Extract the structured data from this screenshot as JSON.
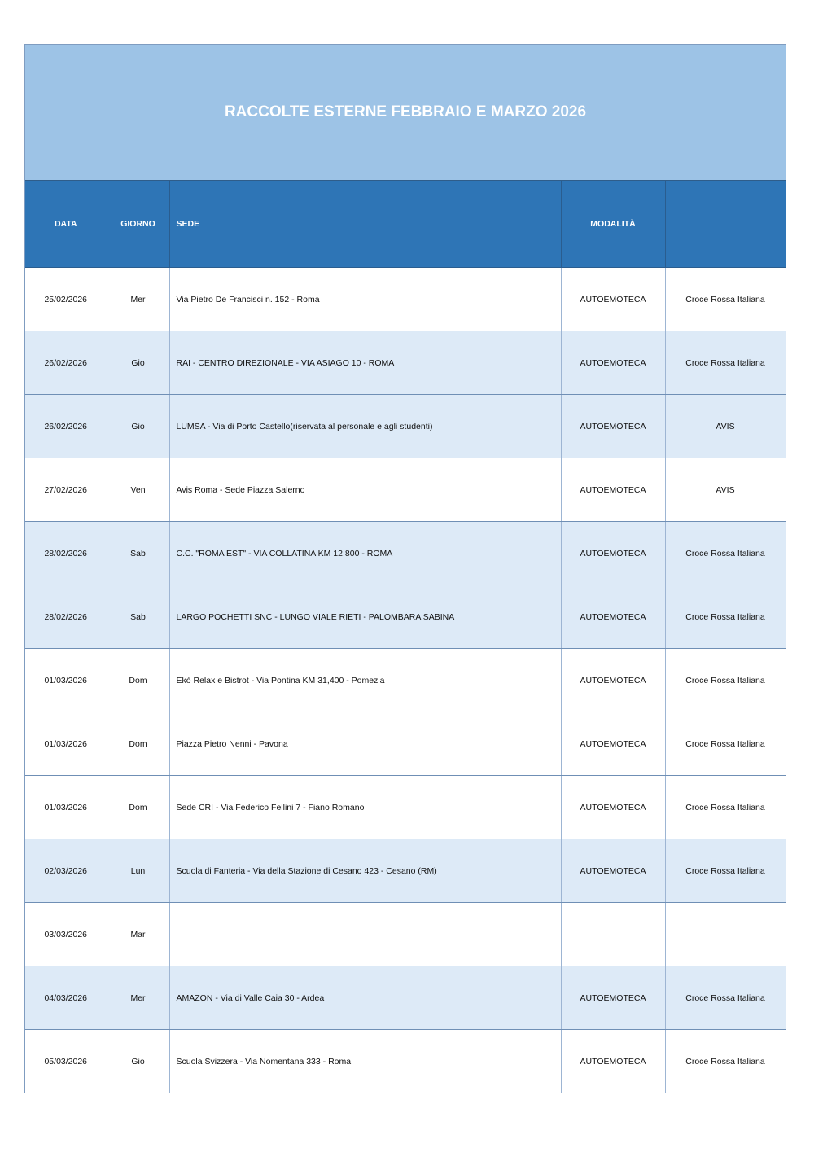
{
  "title": "RACCOLTE ESTERNE FEBBRAIO E MARZO 2026",
  "headers": {
    "data": "DATA",
    "giorno": "GIORNO",
    "sede": "SEDE",
    "modalita": "MODALITÀ",
    "ente": ""
  },
  "colors": {
    "title_band": "#9dc3e6",
    "header": "#2e75b6",
    "row_shade": "#ddeaf7"
  },
  "rows": [
    {
      "data": "25/02/2026",
      "giorno": "Mer",
      "sede": "Via Pietro De Francisci n. 152 - Roma",
      "modalita": "AUTOEMOTECA",
      "ente": "Croce Rossa Italiana",
      "shaded": false
    },
    {
      "data": "26/02/2026",
      "giorno": "Gio",
      "sede": "RAI - CENTRO DIREZIONALE - VIA ASIAGO 10 - ROMA",
      "modalita": "AUTOEMOTECA",
      "ente": "Croce Rossa Italiana",
      "shaded": true
    },
    {
      "data": "26/02/2026",
      "giorno": "Gio",
      "sede": "LUMSA - Via di Porto Castello(riservata al personale e agli studenti)",
      "modalita": "AUTOEMOTECA",
      "ente": "AVIS",
      "shaded": true
    },
    {
      "data": "27/02/2026",
      "giorno": "Ven",
      "sede": "Avis Roma - Sede Piazza Salerno",
      "modalita": "AUTOEMOTECA",
      "ente": "AVIS",
      "shaded": false
    },
    {
      "data": "28/02/2026",
      "giorno": "Sab",
      "sede": "C.C. \"ROMA EST\" - VIA COLLATINA KM 12.800 - ROMA",
      "modalita": "AUTOEMOTECA",
      "ente": "Croce Rossa Italiana",
      "shaded": true
    },
    {
      "data": "28/02/2026",
      "giorno": "Sab",
      "sede": "LARGO POCHETTI SNC - LUNGO VIALE RIETI - PALOMBARA SABINA",
      "modalita": "AUTOEMOTECA",
      "ente": "Croce Rossa Italiana",
      "shaded": true
    },
    {
      "data": "01/03/2026",
      "giorno": "Dom",
      "sede": "Ekò Relax e Bistrot - Via Pontina KM 31,400 - Pomezia",
      "modalita": "AUTOEMOTECA",
      "ente": "Croce Rossa Italiana",
      "shaded": false
    },
    {
      "data": "01/03/2026",
      "giorno": "Dom",
      "sede": "Piazza Pietro Nenni - Pavona",
      "modalita": "AUTOEMOTECA",
      "ente": "Croce Rossa Italiana",
      "shaded": false
    },
    {
      "data": "01/03/2026",
      "giorno": "Dom",
      "sede": "Sede CRI - Via Federico Fellini 7 - Fiano Romano",
      "modalita": "AUTOEMOTECA",
      "ente": "Croce Rossa Italiana",
      "shaded": false
    },
    {
      "data": "02/03/2026",
      "giorno": "Lun",
      "sede": "Scuola di Fanteria - Via della Stazione di Cesano 423 - Cesano (RM)",
      "modalita": "AUTOEMOTECA",
      "ente": "Croce Rossa Italiana",
      "shaded": true
    },
    {
      "data": "03/03/2026",
      "giorno": "Mar",
      "sede": "",
      "modalita": "",
      "ente": "",
      "shaded": false
    },
    {
      "data": "04/03/2026",
      "giorno": "Mer",
      "sede": "AMAZON - Via di Valle Caia 30 - Ardea",
      "modalita": "AUTOEMOTECA",
      "ente": "Croce Rossa Italiana",
      "shaded": true
    },
    {
      "data": "05/03/2026",
      "giorno": "Gio",
      "sede": "Scuola Svizzera - Via Nomentana 333 - Roma",
      "modalita": "AUTOEMOTECA",
      "ente": "Croce Rossa Italiana",
      "shaded": false
    }
  ]
}
